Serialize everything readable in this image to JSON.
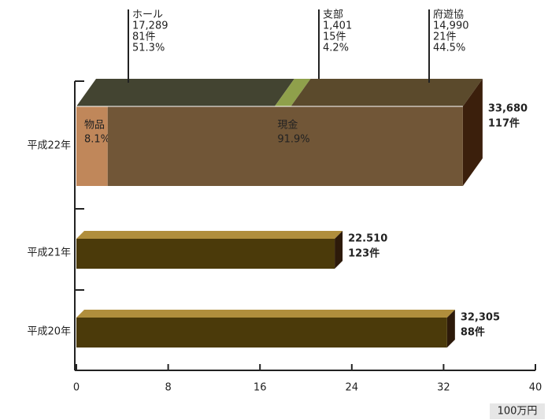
{
  "chart_data": {
    "type": "bar3d",
    "categories": [
      "平成22年",
      "平成21年",
      "平成20年"
    ],
    "values": [
      33.68,
      22.51,
      32.305
    ],
    "value_labels": [
      "33,680",
      "22.510",
      "32,305"
    ],
    "count_labels": [
      "117件",
      "123件",
      "88件"
    ],
    "xlim": [
      0,
      40
    ],
    "xticks": [
      0,
      8,
      16,
      24,
      32,
      40
    ],
    "unit": "100万円",
    "front": {
      "names": [
        "物品",
        "現金"
      ],
      "values": [
        8.1,
        91.9
      ],
      "value_labels": [
        "8.1%",
        "91.9%"
      ],
      "colors": [
        "#c0875a",
        "#715637"
      ]
    },
    "top": {
      "names": [
        "ホール",
        "支部",
        "府遊協"
      ],
      "amounts": [
        17289,
        1401,
        14990
      ],
      "amount_labels": [
        "17,289",
        "1,401",
        "14,990"
      ],
      "count_labels": [
        "81件",
        "15件",
        "21件"
      ],
      "values": [
        51.3,
        4.2,
        44.5
      ],
      "value_labels": [
        "51.3%",
        "4.2%",
        "44.5%"
      ],
      "colors": [
        "#434431",
        "#8fa04b",
        "#5b4a2c"
      ]
    }
  }
}
